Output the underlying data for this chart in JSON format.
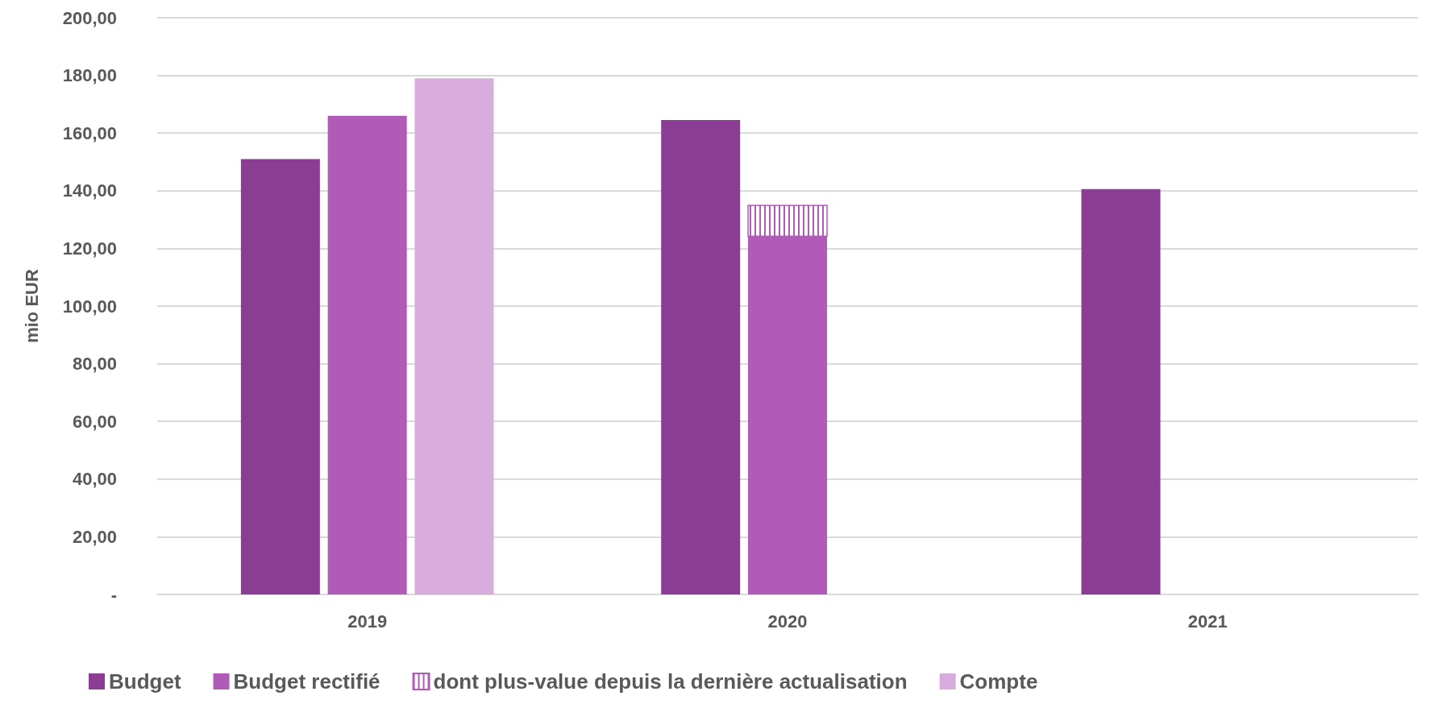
{
  "chart_data": {
    "type": "bar",
    "ylabel": "mio EUR",
    "categories": [
      "2019",
      "2020",
      "2021"
    ],
    "series": [
      {
        "name": "Budget",
        "color": "#8a3d92",
        "values": [
          151,
          164.5,
          140.6
        ]
      },
      {
        "name": "Budget rectifié",
        "color": "#b05bb8",
        "values": [
          166,
          124.2,
          null
        ]
      },
      {
        "name": "dont plus-value depuis la dernière actualisation",
        "color": "#b05bb8",
        "base": [
          null,
          124.2,
          null
        ],
        "values": [
          null,
          10.7,
          null
        ]
      },
      {
        "name": "Compte",
        "color": "#d8acdc",
        "values": [
          179,
          null,
          null
        ]
      }
    ],
    "ylim": [
      0,
      200
    ],
    "yticks": [
      {
        "value": 0,
        "label": "-"
      },
      {
        "value": 20,
        "label": "20,00"
      },
      {
        "value": 40,
        "label": "40,00"
      },
      {
        "value": 60,
        "label": "60,00"
      },
      {
        "value": 80,
        "label": "80,00"
      },
      {
        "value": 100,
        "label": "100,00"
      },
      {
        "value": 120,
        "label": "120,00"
      },
      {
        "value": 140,
        "label": "140,00"
      },
      {
        "value": 160,
        "label": "160,00"
      },
      {
        "value": 180,
        "label": "180,00"
      },
      {
        "value": 200,
        "label": "200,00"
      }
    ],
    "grid": "y",
    "legend": "bottom left"
  }
}
